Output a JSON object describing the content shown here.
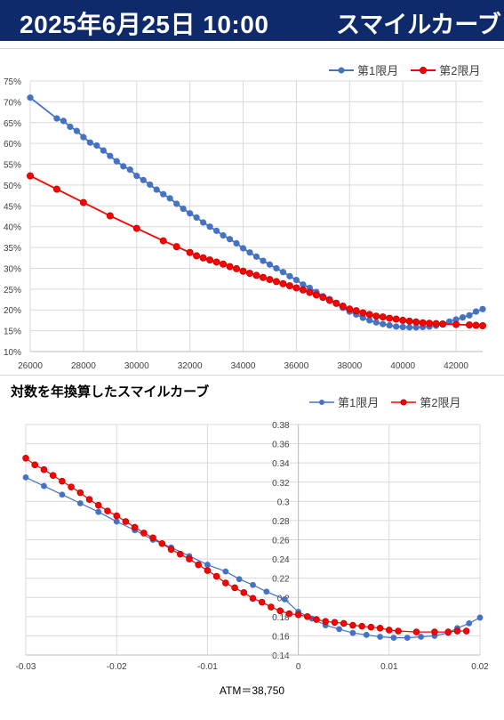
{
  "header": {
    "date_time": "2025年6月25日 10:00",
    "title": "スマイルカーブ"
  },
  "colors": {
    "series1": "#4472c4",
    "series2": "#ff0000",
    "header_bg": "#0f2a6b"
  },
  "chart_data": [
    {
      "type": "line",
      "title": "",
      "xlabel": "",
      "ylabel": "",
      "xlim": [
        26000,
        43000
      ],
      "ylim": [
        10,
        75
      ],
      "xticks": [
        26000,
        28000,
        30000,
        32000,
        34000,
        36000,
        38000,
        40000,
        42000
      ],
      "xtick_labels": [
        "26000",
        "28000",
        "30000",
        "32000",
        "34000",
        "36000",
        "38000",
        "40000",
        "42000"
      ],
      "yticks": [
        10,
        15,
        20,
        25,
        30,
        35,
        40,
        45,
        50,
        55,
        60,
        65,
        70,
        75
      ],
      "ytick_labels": [
        "10%",
        "15%",
        "20%",
        "25%",
        "30%",
        "35%",
        "40%",
        "45%",
        "50%",
        "55%",
        "60%",
        "65%",
        "70%",
        "75%"
      ],
      "grid": true,
      "legend": "top-right",
      "series": [
        {
          "name": "第1限月",
          "color": "#4472c4",
          "x": [
            26000,
            27000,
            27250,
            27500,
            27750,
            28000,
            28250,
            28500,
            28750,
            29000,
            29250,
            29500,
            29750,
            30000,
            30250,
            30500,
            30750,
            31000,
            31250,
            31500,
            31750,
            32000,
            32250,
            32500,
            32750,
            33000,
            33250,
            33500,
            33750,
            34000,
            34250,
            34500,
            34750,
            35000,
            35250,
            35500,
            35750,
            36000,
            36250,
            36500,
            36750,
            37000,
            37250,
            37500,
            37750,
            38000,
            38250,
            38500,
            38750,
            39000,
            39250,
            39500,
            39750,
            40000,
            40250,
            40500,
            40750,
            41000,
            41250,
            41500,
            41750,
            42000,
            42250,
            42500,
            42750,
            43000
          ],
          "y": [
            71.0,
            66.0,
            65.4,
            64.0,
            63.0,
            61.5,
            60.2,
            59.5,
            58.3,
            57.0,
            55.7,
            54.5,
            53.7,
            52.2,
            51.2,
            50.1,
            48.9,
            47.8,
            46.8,
            45.5,
            44.3,
            43.2,
            42.2,
            41.0,
            40.0,
            39.0,
            37.9,
            37.0,
            36.0,
            34.8,
            33.8,
            32.8,
            31.8,
            30.9,
            30.0,
            29.1,
            28.1,
            27.2,
            26.1,
            25.3,
            24.3,
            23.3,
            22.6,
            21.5,
            20.5,
            19.6,
            18.9,
            18.1,
            17.5,
            17.0,
            16.6,
            16.3,
            16.0,
            15.9,
            15.8,
            15.8,
            15.9,
            16.0,
            16.2,
            16.7,
            17.2,
            17.7,
            18.2,
            18.7,
            19.6,
            20.2
          ]
        },
        {
          "name": "第2限月",
          "color": "#ff0000",
          "x": [
            26000,
            27000,
            28000,
            29000,
            30000,
            31000,
            31500,
            32000,
            32250,
            32500,
            32750,
            33000,
            33250,
            33500,
            33750,
            34000,
            34250,
            34500,
            34750,
            35000,
            35250,
            35500,
            35750,
            36000,
            36250,
            36500,
            36750,
            37000,
            37250,
            37500,
            37750,
            38000,
            38250,
            38500,
            38750,
            39000,
            39250,
            39500,
            39750,
            40000,
            40250,
            40500,
            40750,
            41000,
            41250,
            41500,
            42000,
            42500,
            42750,
            43000
          ],
          "y": [
            52.2,
            49.0,
            45.8,
            42.6,
            39.6,
            36.6,
            35.2,
            33.8,
            33.0,
            32.5,
            32.0,
            31.5,
            31.0,
            30.4,
            29.9,
            29.3,
            28.8,
            28.3,
            27.8,
            27.3,
            26.8,
            26.3,
            25.8,
            25.3,
            24.8,
            24.2,
            23.6,
            23.0,
            22.3,
            21.6,
            20.9,
            20.2,
            19.8,
            19.3,
            18.9,
            18.5,
            18.3,
            18.0,
            17.8,
            17.5,
            17.3,
            17.1,
            16.9,
            16.8,
            16.7,
            16.6,
            16.5,
            16.4,
            16.3,
            16.2
          ]
        }
      ]
    },
    {
      "type": "line",
      "title": "対数を年換算したスマイルカーブ",
      "xlabel": "ATM＝38,750",
      "ylabel": "",
      "xlim": [
        -0.03,
        0.02
      ],
      "ylim": [
        0.14,
        0.38
      ],
      "xticks": [
        -0.03,
        -0.02,
        -0.01,
        0,
        0.01,
        0.02
      ],
      "xtick_labels": [
        "-0.03",
        "-0.02",
        "-0.01",
        "0",
        "0.01",
        "0.02"
      ],
      "yticks": [
        0.14,
        0.16,
        0.18,
        0.2,
        0.22,
        0.24,
        0.26,
        0.28,
        0.3,
        0.32,
        0.34,
        0.36,
        0.38
      ],
      "ytick_labels": [
        "0.14",
        "0.16",
        "0.18",
        "0.2",
        "0.22",
        "0.24",
        "0.26",
        "0.28",
        "0.3",
        "0.32",
        "0.34",
        "0.36",
        "0.38"
      ],
      "grid": true,
      "legend": "top-right",
      "series": [
        {
          "name": "第1限月",
          "color": "#4472c4",
          "x": [
            -0.03,
            -0.028,
            -0.026,
            -0.024,
            -0.022,
            -0.02,
            -0.018,
            -0.016,
            -0.014,
            -0.012,
            -0.01,
            -0.008,
            -0.0065,
            -0.005,
            -0.0035,
            -0.0015,
            0,
            0.0015,
            0.003,
            0.0045,
            0.006,
            0.0075,
            0.009,
            0.0105,
            0.012,
            0.0135,
            0.015,
            0.0165,
            0.0175,
            0.0188,
            0.02
          ],
          "y": [
            0.325,
            0.316,
            0.307,
            0.298,
            0.289,
            0.279,
            0.27,
            0.26,
            0.252,
            0.243,
            0.234,
            0.227,
            0.219,
            0.213,
            0.206,
            0.198,
            0.185,
            0.178,
            0.171,
            0.167,
            0.163,
            0.161,
            0.159,
            0.158,
            0.158,
            0.159,
            0.16,
            0.163,
            0.168,
            0.173,
            0.179
          ]
        },
        {
          "name": "第2限月",
          "color": "#ff0000",
          "x": [
            -0.03,
            -0.029,
            -0.028,
            -0.027,
            -0.026,
            -0.025,
            -0.024,
            -0.023,
            -0.022,
            -0.021,
            -0.02,
            -0.019,
            -0.018,
            -0.017,
            -0.016,
            -0.015,
            -0.014,
            -0.013,
            -0.012,
            -0.011,
            -0.01,
            -0.009,
            -0.008,
            -0.007,
            -0.006,
            -0.005,
            -0.004,
            -0.003,
            -0.002,
            -0.001,
            0,
            0.001,
            0.002,
            0.003,
            0.004,
            0.005,
            0.006,
            0.007,
            0.008,
            0.009,
            0.01,
            0.011,
            0.013,
            0.015,
            0.0165,
            0.0175,
            0.0185
          ],
          "y": [
            0.345,
            0.338,
            0.333,
            0.327,
            0.321,
            0.315,
            0.309,
            0.302,
            0.296,
            0.29,
            0.285,
            0.279,
            0.273,
            0.267,
            0.262,
            0.256,
            0.25,
            0.245,
            0.24,
            0.234,
            0.228,
            0.222,
            0.215,
            0.21,
            0.205,
            0.199,
            0.195,
            0.19,
            0.186,
            0.183,
            0.182,
            0.18,
            0.177,
            0.175,
            0.174,
            0.173,
            0.171,
            0.17,
            0.169,
            0.168,
            0.166,
            0.165,
            0.164,
            0.164,
            0.164,
            0.165,
            0.165
          ]
        }
      ]
    }
  ]
}
